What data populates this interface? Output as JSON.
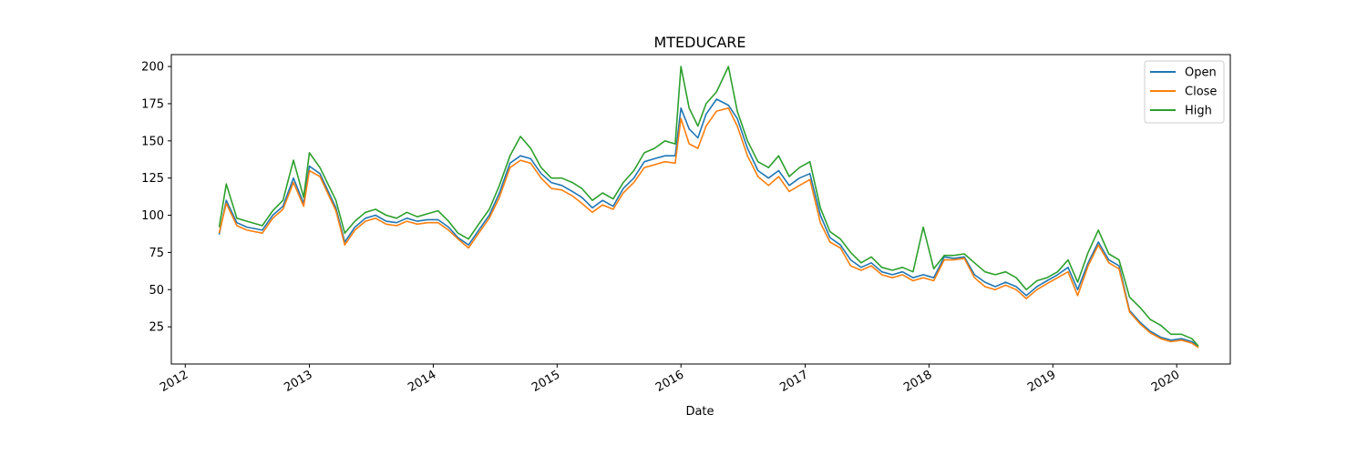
{
  "chart_data": {
    "type": "line",
    "title": "MTEDUCARE",
    "xlabel": "Date",
    "ylabel": "",
    "x_axis_type": "date",
    "xlim": [
      "2011-11-21",
      "2020-06-07"
    ],
    "ylim": [
      0,
      208
    ],
    "x_ticks": [
      "2012",
      "2013",
      "2014",
      "2015",
      "2016",
      "2017",
      "2018",
      "2019",
      "2020"
    ],
    "y_ticks": [
      25,
      50,
      75,
      100,
      125,
      150,
      175,
      200
    ],
    "grid": false,
    "legend_position": "top-right",
    "colors": {
      "Open": "#1f77b4",
      "Close": "#ff7f0e",
      "High": "#2ca02c"
    },
    "x": [
      "2012-04-10",
      "2012-05-01",
      "2012-06-01",
      "2012-07-01",
      "2012-08-15",
      "2012-09-15",
      "2012-10-15",
      "2012-11-15",
      "2012-12-15",
      "2013-01-01",
      "2013-02-01",
      "2013-03-20",
      "2013-04-15",
      "2013-05-15",
      "2013-06-15",
      "2013-07-15",
      "2013-08-15",
      "2013-09-15",
      "2013-10-15",
      "2013-11-15",
      "2013-12-15",
      "2014-01-15",
      "2014-02-15",
      "2014-03-15",
      "2014-04-15",
      "2014-05-15",
      "2014-06-15",
      "2014-07-15",
      "2014-08-15",
      "2014-09-15",
      "2014-10-15",
      "2014-11-15",
      "2014-12-15",
      "2015-01-15",
      "2015-02-15",
      "2015-03-15",
      "2015-04-15",
      "2015-05-15",
      "2015-06-15",
      "2015-07-15",
      "2015-08-15",
      "2015-09-15",
      "2015-10-15",
      "2015-11-15",
      "2015-12-15",
      "2016-01-01",
      "2016-01-25",
      "2016-02-20",
      "2016-03-15",
      "2016-04-15",
      "2016-05-20",
      "2016-06-15",
      "2016-07-15",
      "2016-08-15",
      "2016-09-15",
      "2016-10-15",
      "2016-11-15",
      "2016-12-15",
      "2017-01-15",
      "2017-02-15",
      "2017-03-15",
      "2017-04-15",
      "2017-05-15",
      "2017-06-15",
      "2017-07-15",
      "2017-08-15",
      "2017-09-15",
      "2017-10-15",
      "2017-11-15",
      "2017-12-15",
      "2018-01-15",
      "2018-02-15",
      "2018-03-15",
      "2018-04-15",
      "2018-05-15",
      "2018-06-15",
      "2018-07-15",
      "2018-08-15",
      "2018-09-15",
      "2018-10-15",
      "2018-11-15",
      "2018-12-15",
      "2019-01-15",
      "2019-02-15",
      "2019-03-15",
      "2019-04-15",
      "2019-05-15",
      "2019-06-15",
      "2019-07-15",
      "2019-08-15",
      "2019-09-15",
      "2019-10-15",
      "2019-11-15",
      "2019-12-15",
      "2020-01-15",
      "2020-02-15",
      "2020-03-05"
    ],
    "series": [
      {
        "name": "Open",
        "values": [
          87,
          110,
          95,
          92,
          90,
          100,
          106,
          125,
          108,
          133,
          128,
          105,
          82,
          92,
          98,
          100,
          96,
          95,
          98,
          96,
          97,
          97,
          92,
          85,
          80,
          90,
          100,
          115,
          135,
          140,
          138,
          128,
          122,
          120,
          116,
          112,
          105,
          110,
          106,
          118,
          125,
          136,
          138,
          140,
          140,
          172,
          158,
          152,
          168,
          178,
          174,
          165,
          145,
          130,
          125,
          130,
          120,
          125,
          128,
          100,
          85,
          80,
          70,
          65,
          68,
          62,
          60,
          62,
          58,
          60,
          58,
          72,
          71,
          72,
          60,
          55,
          52,
          55,
          52,
          46,
          52,
          56,
          60,
          65,
          50,
          68,
          82,
          70,
          66,
          36,
          28,
          22,
          18,
          16,
          17,
          15,
          12
        ]
      },
      {
        "name": "Close",
        "values": [
          88,
          108,
          93,
          90,
          88,
          98,
          104,
          122,
          106,
          130,
          126,
          103,
          80,
          90,
          96,
          98,
          94,
          93,
          96,
          94,
          95,
          95,
          90,
          84,
          78,
          88,
          98,
          112,
          132,
          137,
          135,
          125,
          118,
          117,
          113,
          108,
          102,
          107,
          104,
          115,
          122,
          132,
          134,
          136,
          135,
          165,
          148,
          145,
          160,
          170,
          172,
          160,
          140,
          126,
          120,
          126,
          116,
          120,
          124,
          95,
          82,
          78,
          66,
          63,
          66,
          60,
          58,
          60,
          56,
          58,
          56,
          70,
          70,
          71,
          58,
          52,
          50,
          53,
          50,
          44,
          50,
          54,
          58,
          62,
          46,
          66,
          80,
          68,
          64,
          35,
          27,
          21,
          17,
          15,
          16,
          14,
          11
        ]
      },
      {
        "name": "High",
        "values": [
          92,
          121,
          98,
          96,
          93,
          103,
          110,
          137,
          112,
          142,
          132,
          110,
          88,
          96,
          102,
          104,
          100,
          98,
          102,
          99,
          101,
          103,
          96,
          88,
          84,
          94,
          104,
          120,
          140,
          153,
          145,
          132,
          125,
          125,
          122,
          118,
          110,
          115,
          111,
          122,
          130,
          142,
          145,
          150,
          148,
          200,
          172,
          160,
          175,
          183,
          200,
          170,
          150,
          136,
          132,
          140,
          126,
          132,
          136,
          105,
          89,
          84,
          75,
          68,
          72,
          65,
          63,
          65,
          62,
          92,
          64,
          73,
          73,
          74,
          68,
          62,
          60,
          62,
          58,
          50,
          56,
          58,
          62,
          70,
          55,
          75,
          90,
          74,
          70,
          45,
          38,
          30,
          26,
          20,
          20,
          17,
          12
        ]
      }
    ]
  }
}
